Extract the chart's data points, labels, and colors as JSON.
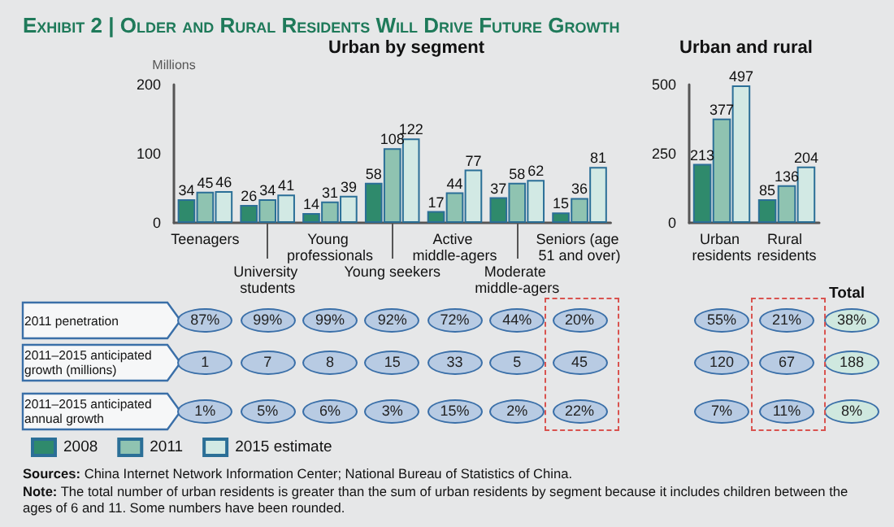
{
  "chart_data": [
    {
      "type": "bar",
      "title": "Urban by segment",
      "ylabel": "Millions",
      "categories": [
        "Teenagers",
        "University students",
        "Young professionals",
        "Young seekers",
        "Active middle-agers",
        "Moderate middle-agers",
        "Seniors (age 51 and over)"
      ],
      "series": [
        {
          "name": "2008",
          "color": "#2f8a6c",
          "values": [
            34,
            26,
            14,
            58,
            17,
            37,
            15
          ]
        },
        {
          "name": "2011",
          "color": "#8fc3b1",
          "values": [
            45,
            34,
            31,
            108,
            44,
            58,
            36
          ]
        },
        {
          "name": "2015 estimate",
          "color": "#d2e9e4",
          "values": [
            46,
            41,
            39,
            122,
            77,
            62,
            81
          ]
        }
      ],
      "ylim": [
        0,
        200
      ],
      "yticks": [
        0,
        100,
        200
      ],
      "grid": false,
      "legend": "bottom left",
      "data_labels": true,
      "annotations": [
        "Exhibit 2 | Older and Rural Residents Will Drive Future Growth",
        "2011 penetration",
        "2011–2015 anticipated growth (millions)",
        "2011–2015 anticipated annual growth",
        "87%",
        "99%",
        "99%",
        "92%",
        "72%",
        "44%",
        "20%",
        "1",
        "7",
        "8",
        "15",
        "33",
        "5",
        "45",
        "1%",
        "5%",
        "6%",
        "3%",
        "15%",
        "2%",
        "22%",
        "Sources: China Internet Network Information Center; National Bureau of Statistics of China.",
        "Note: The total number of urban residents is greater than the sum of urban residents by segment because it includes children between the ages of 6 and 11. Some numbers have been rounded."
      ]
    },
    {
      "type": "bar",
      "title": "Urban and rural",
      "categories": [
        "Urban residents",
        "Rural residents"
      ],
      "series": [
        {
          "color": "#2f8a6c",
          "values": [
            213,
            85
          ]
        },
        {
          "color": "#8fc3b1",
          "values": [
            377,
            136
          ]
        },
        {
          "color": "#d2e9e4",
          "values": [
            497,
            204
          ]
        }
      ],
      "ylim": [
        0,
        500
      ],
      "yticks": [
        0,
        250,
        500
      ],
      "grid": false,
      "legend": false,
      "data_labels": true,
      "annotations": [
        "Total",
        "55%",
        "21%",
        "38%",
        "120",
        "67",
        "188",
        "7%",
        "11%",
        "8%"
      ]
    }
  ]
}
